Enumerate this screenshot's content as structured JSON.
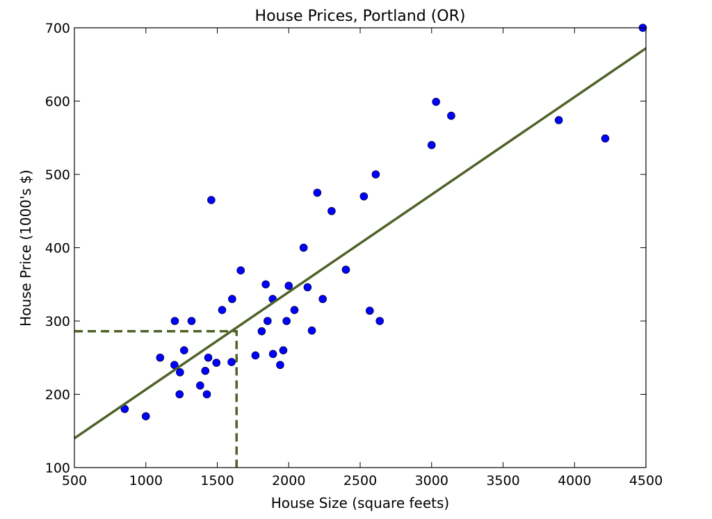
{
  "chart_data": {
    "type": "scatter",
    "title": "House Prices, Portland (OR)",
    "xlabel": "House Size (square feets)",
    "ylabel": "House Price (1000's $)",
    "xlim": [
      500,
      4500
    ],
    "ylim": [
      100,
      700
    ],
    "xticks": [
      500,
      1000,
      1500,
      2000,
      2500,
      3000,
      3500,
      4000,
      4500
    ],
    "yticks": [
      100,
      200,
      300,
      400,
      500,
      600,
      700
    ],
    "grid": false,
    "colors": {
      "points": "#0000ff",
      "fit_line": "#4f6228",
      "guide_line": "#4f6228"
    },
    "series": [
      {
        "kind": "points",
        "x": [
          852,
          1000,
          1100,
          1200,
          1203,
          1236,
          1239,
          1268,
          1320,
          1380,
          1416,
          1427,
          1437,
          1458,
          1494,
          1534,
          1600,
          1604,
          1664,
          1767,
          1811,
          1839,
          1852,
          1888,
          1890,
          1940,
          1962,
          1985,
          2000,
          2040,
          2104,
          2132,
          2162,
          2200,
          2238,
          2300,
          2400,
          2526,
          2567,
          2609,
          2637,
          3000,
          3031,
          3137,
          3890,
          4215,
          4478
        ],
        "y": [
          180,
          170,
          250,
          240,
          300,
          200,
          230,
          260,
          300,
          212,
          232,
          200,
          250,
          465,
          243,
          315,
          244,
          330,
          369,
          253,
          286,
          350,
          300,
          330,
          255,
          240,
          260,
          300,
          348,
          315,
          400,
          346,
          287,
          475,
          330,
          450,
          370,
          470,
          314,
          500,
          300,
          540,
          599,
          580,
          574,
          549,
          700
        ]
      },
      {
        "kind": "fit-line",
        "x": [
          500,
          4500
        ],
        "y": [
          140,
          672
        ]
      },
      {
        "kind": "guide-line",
        "x": [
          500,
          1635,
          1635
        ],
        "y": [
          286,
          286,
          100
        ]
      }
    ]
  }
}
